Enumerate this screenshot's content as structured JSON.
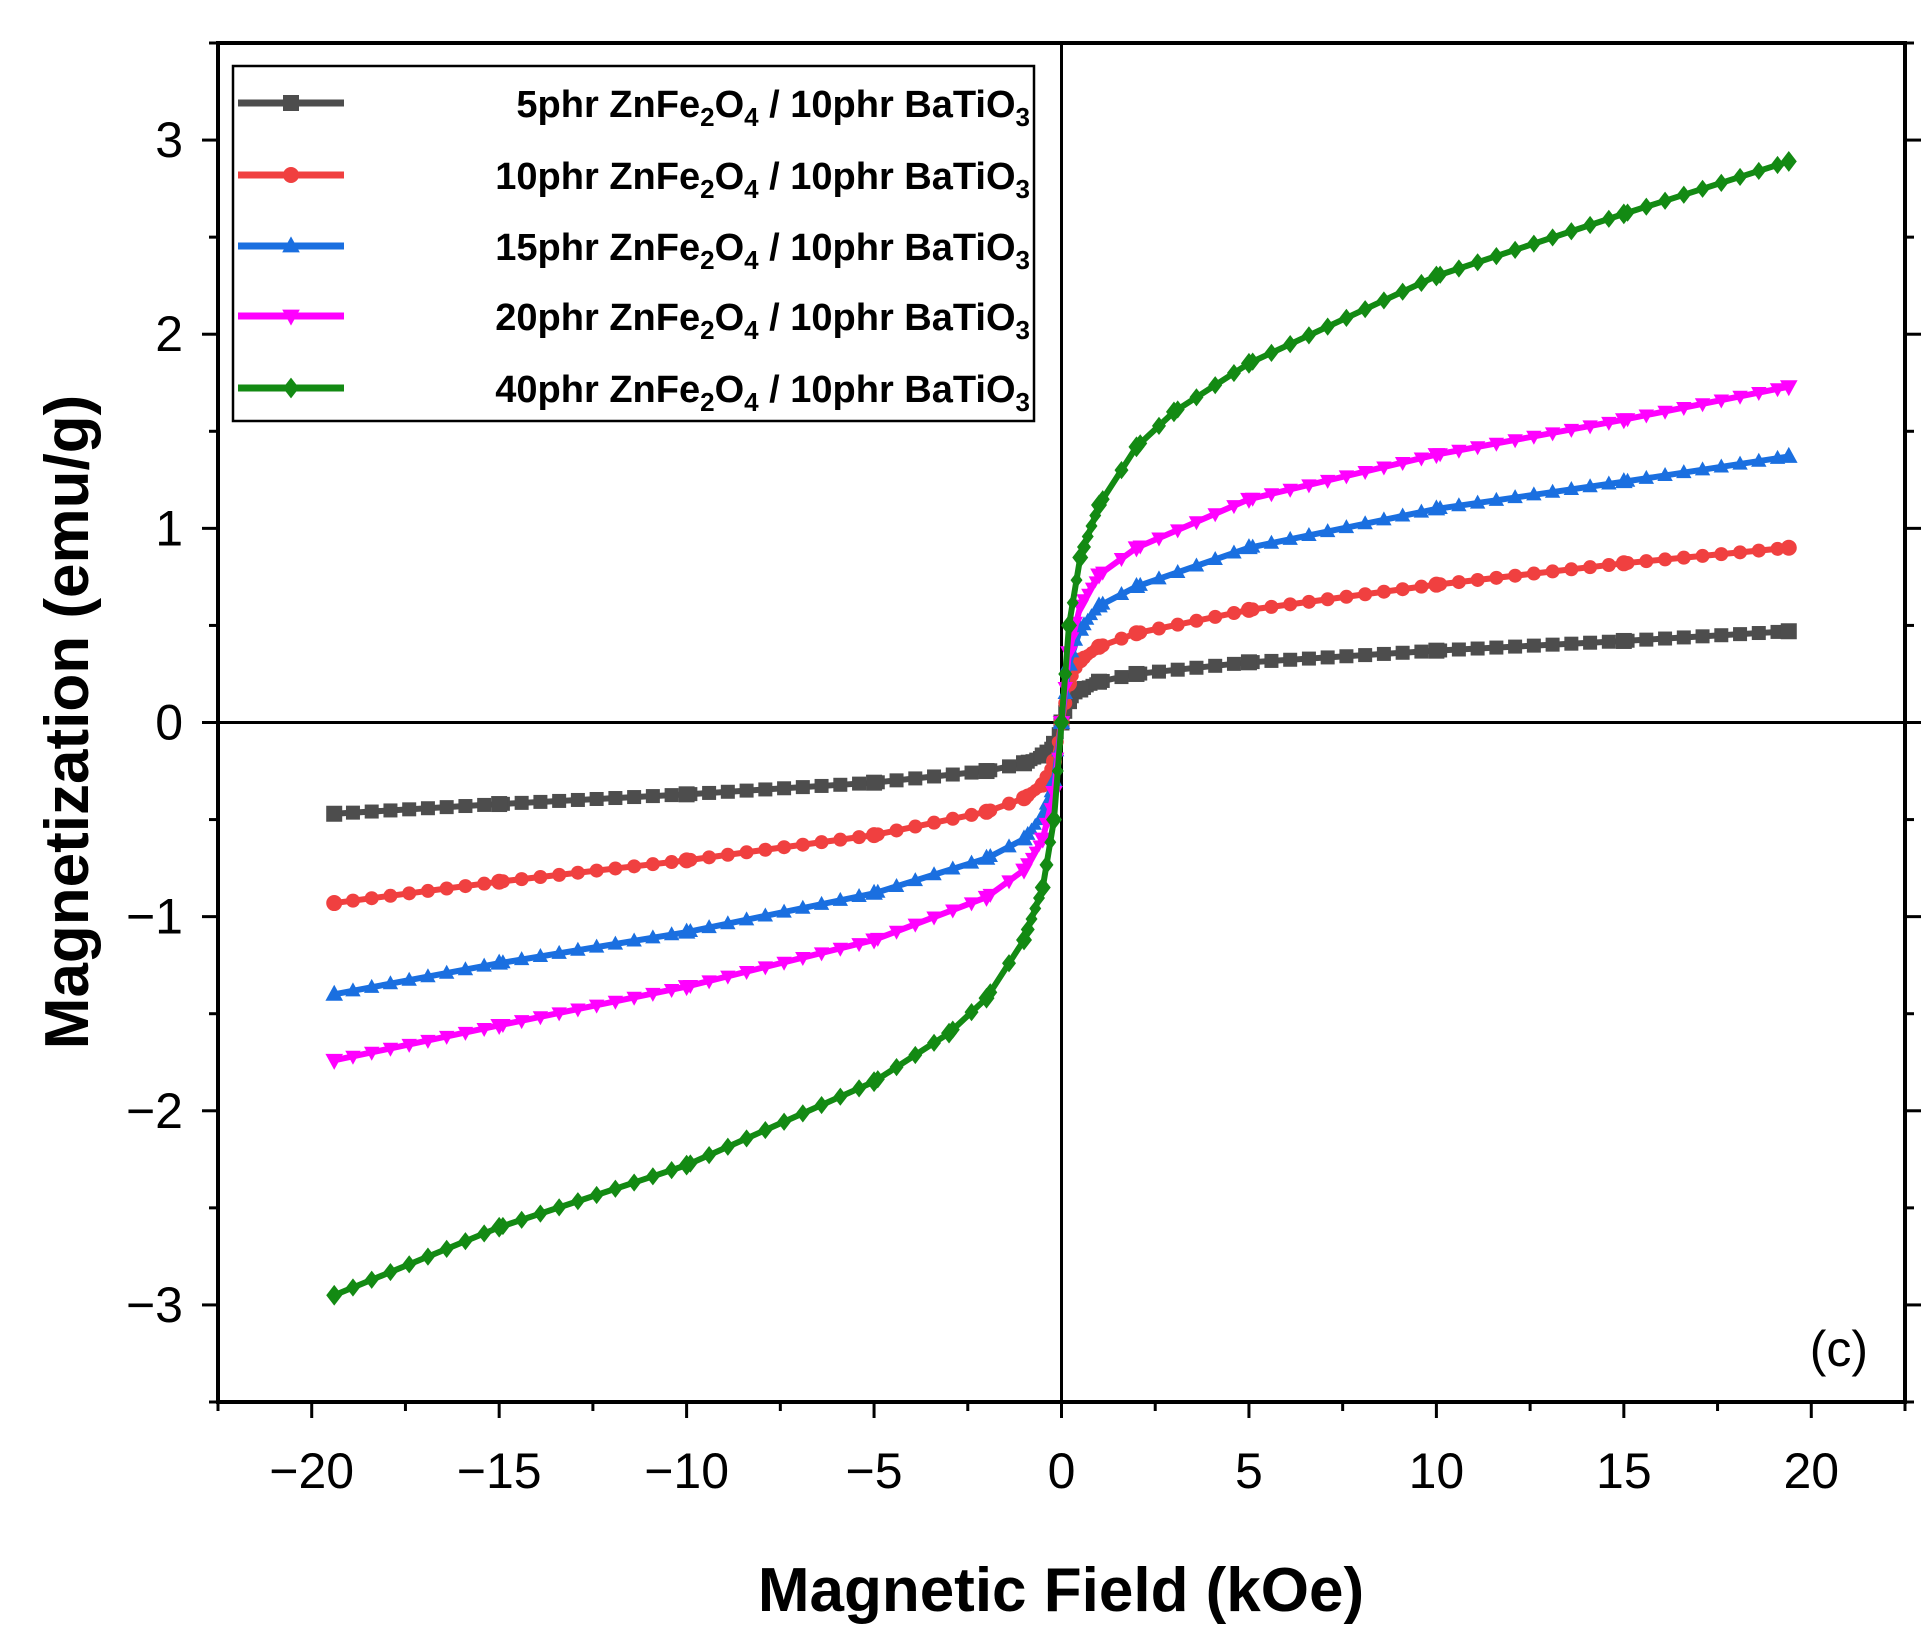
{
  "chart_data": {
    "type": "line",
    "xlabel": "Magnetic Field (kOe)",
    "ylabel": "Magnetization (emu/g)",
    "xlim": [
      -22.5,
      22.5
    ],
    "ylim": [
      -3.5,
      3.5
    ],
    "xticks": [
      -20,
      -15,
      -10,
      -5,
      0,
      5,
      10,
      15,
      20
    ],
    "yticks": [
      -3,
      -2,
      -1,
      0,
      1,
      2,
      3
    ],
    "xtick_labels": [
      "−20",
      "−15",
      "−10",
      "−5",
      "0",
      "5",
      "10",
      "15",
      "20"
    ],
    "ytick_labels": [
      "−3",
      "−2",
      "−1",
      "0",
      "1",
      "2",
      "3"
    ],
    "panel_label": "(c)",
    "legend_position": "top-left",
    "series": [
      {
        "name": "5phr ZnFe2O4 / 10phr BaTiO3",
        "label_parts": [
          "5phr ZnFe",
          "2",
          "O",
          "4",
          " / 10phr BaTiO",
          "3"
        ],
        "color": "#4d4d4d",
        "marker": "square",
        "x": [
          -19.4,
          -15,
          -10,
          -5,
          -2,
          -1,
          -0.5,
          -0.2,
          0,
          0.2,
          0.5,
          1,
          2,
          5,
          10,
          15,
          19.4
        ],
        "y": [
          -0.47,
          -0.42,
          -0.37,
          -0.31,
          -0.25,
          -0.21,
          -0.17,
          -0.11,
          0,
          0.11,
          0.17,
          0.21,
          0.25,
          0.31,
          0.37,
          0.42,
          0.47
        ]
      },
      {
        "name": "10phr ZnFe2O4 / 10phr BaTiO3",
        "label_parts": [
          "10phr ZnFe",
          "2",
          "O",
          "4",
          " / 10phr BaTiO",
          "3"
        ],
        "color": "#f04040",
        "marker": "circle",
        "x": [
          -19.4,
          -15,
          -10,
          -5,
          -2,
          -1,
          -0.5,
          -0.2,
          0,
          0.2,
          0.5,
          1,
          2,
          5,
          10,
          15,
          19.4
        ],
        "y": [
          -0.93,
          -0.82,
          -0.71,
          -0.58,
          -0.46,
          -0.39,
          -0.32,
          -0.2,
          0,
          0.2,
          0.32,
          0.39,
          0.46,
          0.58,
          0.71,
          0.82,
          0.9
        ]
      },
      {
        "name": "15phr ZnFe2O4 / 10phr BaTiO3",
        "label_parts": [
          "15phr ZnFe",
          "2",
          "O",
          "4",
          " / 10phr BaTiO",
          "3"
        ],
        "color": "#1a6fe0",
        "marker": "triangle-up",
        "x": [
          -19.4,
          -15,
          -10,
          -5,
          -2,
          -1,
          -0.5,
          -0.2,
          0,
          0.2,
          0.5,
          1,
          2,
          5,
          10,
          15,
          19.4
        ],
        "y": [
          -1.4,
          -1.24,
          -1.08,
          -0.88,
          -0.7,
          -0.6,
          -0.48,
          -0.3,
          0,
          0.3,
          0.48,
          0.6,
          0.7,
          0.9,
          1.1,
          1.24,
          1.37
        ]
      },
      {
        "name": "20phr ZnFe2O4 / 10phr BaTiO3",
        "label_parts": [
          "20phr ZnFe",
          "2",
          "O",
          "4",
          " / 10phr BaTiO",
          "3"
        ],
        "color": "#ff00ff",
        "marker": "triangle-down",
        "x": [
          -19.4,
          -15,
          -10,
          -5,
          -2,
          -1,
          -0.5,
          -0.2,
          0,
          0.2,
          0.5,
          1,
          2,
          5,
          10,
          15,
          19.4
        ],
        "y": [
          -1.74,
          -1.56,
          -1.36,
          -1.12,
          -0.9,
          -0.76,
          -0.6,
          -0.36,
          0,
          0.36,
          0.6,
          0.76,
          0.9,
          1.15,
          1.38,
          1.56,
          1.73
        ]
      },
      {
        "name": "40phr ZnFe2O4 / 10phr BaTiO3",
        "label_parts": [
          "40phr ZnFe",
          "2",
          "O",
          "4",
          " / 10phr BaTiO",
          "3"
        ],
        "color": "#138a13",
        "marker": "diamond",
        "x": [
          -19.4,
          -15,
          -10,
          -5,
          -3,
          -2,
          -1,
          -0.5,
          -0.2,
          0,
          0.2,
          0.5,
          1,
          2,
          3,
          5,
          10,
          15,
          19.4
        ],
        "y": [
          -2.95,
          -2.6,
          -2.28,
          -1.85,
          -1.6,
          -1.42,
          -1.12,
          -0.85,
          -0.5,
          0,
          0.5,
          0.85,
          1.12,
          1.42,
          1.6,
          1.85,
          2.3,
          2.62,
          2.89
        ]
      }
    ]
  }
}
